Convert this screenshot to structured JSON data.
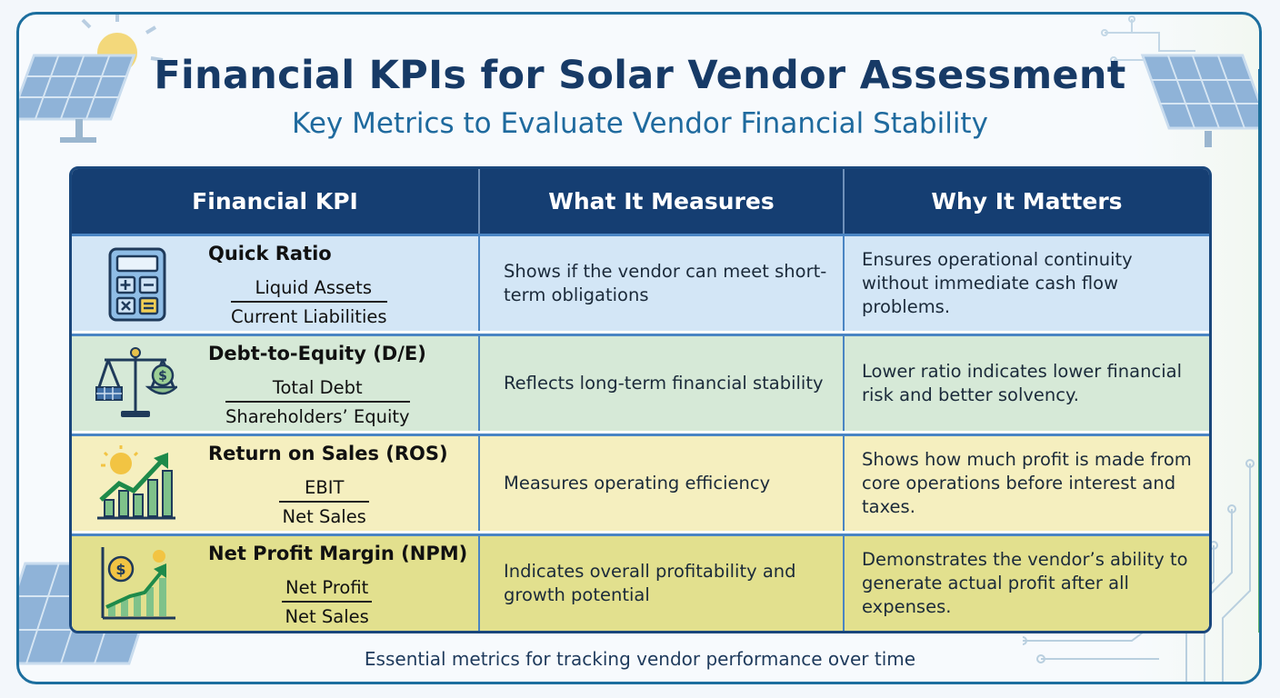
{
  "header": {
    "title": "Financial KPIs for Solar Vendor Assessment",
    "subtitle": "Key Metrics to Evaluate Vendor Financial Stability"
  },
  "table": {
    "columns": [
      "Financial KPI",
      "What It Measures",
      "Why It Matters"
    ],
    "rows": [
      {
        "icon": "calculator-icon",
        "kpi": "Quick Ratio",
        "numerator": "Liquid Assets",
        "denominator": "Current Liabilities",
        "measures": "Shows if the vendor can meet short-term obligations",
        "matters": "Ensures operational continuity without immediate cash flow problems.",
        "color": "#d3e6f6"
      },
      {
        "icon": "balance-scale-icon",
        "kpi": "Debt-to-Equity (D/E)",
        "numerator": "Total Debt",
        "denominator": "Shareholders’ Equity",
        "measures": "Reflects long-term financial stability",
        "matters": "Lower ratio indicates lower financial risk and better solvency.",
        "color": "#d6e9d7"
      },
      {
        "icon": "growth-chart-icon",
        "kpi": "Return on Sales (ROS)",
        "numerator": "EBIT",
        "denominator": "Net Sales",
        "measures": "Measures operating efficiency",
        "matters": "Shows how much profit is made from core operations before interest and taxes.",
        "color": "#f5efbf"
      },
      {
        "icon": "profit-growth-icon",
        "kpi": "Net Profit Margin (NPM)",
        "numerator": "Net Profit",
        "denominator": "Net Sales",
        "measures": "Indicates overall profitability and growth potential",
        "matters": "Demonstrates the vendor’s ability to generate actual profit after all expenses.",
        "color": "#e2e08e"
      }
    ]
  },
  "footer": {
    "text": "Essential metrics for tracking vendor performance over time"
  },
  "colors": {
    "header_bg": "#153e72",
    "title": "#173a66",
    "subtitle": "#1f6a9e"
  }
}
